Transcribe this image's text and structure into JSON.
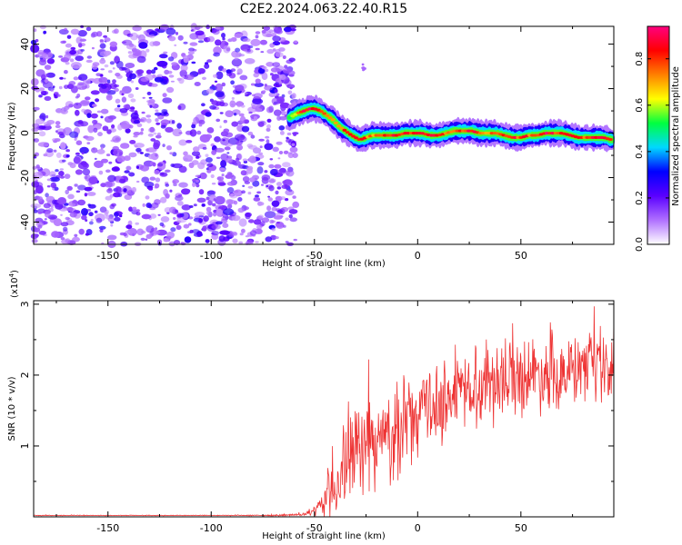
{
  "title": "C2E2.2024.063.22.40.R15",
  "chart_data": [
    {
      "type": "heatmap",
      "xlabel": "Height of straight line (km)",
      "ylabel": "Frequency (Hz)",
      "xlim": [
        -186,
        95
      ],
      "ylim": [
        -50,
        48
      ],
      "x_ticks": [
        -150,
        -100,
        -50,
        0,
        50
      ],
      "y_ticks": [
        -40,
        -20,
        0,
        20,
        40
      ],
      "colorbar": {
        "label": "Normalized spectral amplitude",
        "range": [
          0,
          0.94
        ],
        "ticks": [
          0.0,
          0.2,
          0.4,
          0.6,
          0.8
        ],
        "colormap": [
          "#ffffff",
          "#b070ff",
          "#5a00ff",
          "#0000ff",
          "#00d8ff",
          "#00ff40",
          "#ffff00",
          "#ff8000",
          "#ff0000",
          "#ff0080"
        ]
      },
      "noise_region": {
        "x": [
          -186,
          -59
        ],
        "y": [
          -50,
          48
        ]
      },
      "signal_ridge": {
        "x": [
          -62,
          -58,
          -55,
          -52,
          -50,
          -47,
          -44,
          -41,
          -38,
          -35,
          -32,
          -28,
          -25,
          -22,
          -18,
          -14,
          -10,
          -6,
          -2,
          2,
          6,
          10,
          14,
          18,
          22,
          26,
          30,
          34,
          38,
          42,
          46,
          50,
          54,
          58,
          62,
          66,
          70,
          74,
          78,
          82,
          86,
          90,
          94
        ],
        "frequency": [
          7,
          9,
          10,
          11,
          11,
          10,
          8,
          6,
          3,
          1,
          -1,
          -3,
          -2,
          -1,
          -1,
          -1,
          -1,
          0,
          0,
          0,
          -1,
          -1,
          0,
          1,
          1,
          1,
          0,
          0,
          0,
          -1,
          -2,
          -2,
          -1,
          -1,
          0,
          0,
          0,
          -1,
          -2,
          -2,
          -2,
          -2,
          -3
        ],
        "peak_amplitude": [
          0.55,
          0.7,
          0.85,
          0.9,
          0.9,
          0.85,
          0.8,
          0.75,
          0.75,
          0.8,
          0.85,
          0.85,
          0.8,
          0.75,
          0.8,
          0.85,
          0.9,
          0.85,
          0.8,
          0.85,
          0.9,
          0.85,
          0.8,
          0.75,
          0.8,
          0.85,
          0.8,
          0.75,
          0.8,
          0.85,
          0.85,
          0.8,
          0.8,
          0.85,
          0.9,
          0.85,
          0.8,
          0.85,
          0.85,
          0.8,
          0.85,
          0.85,
          0.8
        ]
      },
      "artifact": {
        "x": [
          -27,
          -25
        ],
        "y": [
          26,
          31
        ]
      }
    },
    {
      "type": "line",
      "xlabel": "Height of straight line (km)",
      "ylabel": "SNR (10 * v/v)",
      "y_multiplier": "(x10",
      "y_multiplier_exp": "4",
      "y_multiplier_close": ")",
      "xlim": [
        -186,
        95
      ],
      "ylim": [
        0,
        3.05
      ],
      "x_ticks": [
        -150,
        -100,
        -50,
        0,
        50
      ],
      "y_ticks": [
        1,
        2,
        3
      ],
      "line_color": "#ee3333",
      "series": [
        {
          "x": [
            -186,
            -160,
            -130,
            -100,
            -70,
            -55,
            -50,
            -46,
            -42,
            -38,
            -34,
            -30,
            -26,
            -22,
            -18,
            -14,
            -10,
            -6,
            -2,
            2,
            6,
            10,
            14,
            18,
            22,
            26,
            30,
            34,
            38,
            42,
            46,
            50,
            54,
            58,
            62,
            66,
            70,
            74,
            78,
            82,
            86,
            90,
            95
          ],
          "y": [
            0.02,
            0.02,
            0.02,
            0.02,
            0.02,
            0.03,
            0.08,
            0.18,
            0.38,
            0.55,
            0.78,
            0.9,
            0.98,
            1.02,
            1.08,
            1.12,
            1.2,
            1.28,
            1.38,
            1.45,
            1.55,
            1.62,
            1.65,
            1.72,
            1.78,
            1.82,
            1.88,
            1.92,
            1.95,
            1.95,
            1.98,
            2.0,
            2.02,
            2.02,
            2.03,
            2.03,
            2.04,
            2.04,
            2.05,
            2.05,
            2.05,
            2.05,
            2.05
          ],
          "spread": [
            0.005,
            0.005,
            0.005,
            0.005,
            0.01,
            0.02,
            0.06,
            0.2,
            0.45,
            0.6,
            0.65,
            0.65,
            0.65,
            0.65,
            0.65,
            0.65,
            0.65,
            0.62,
            0.6,
            0.6,
            0.58,
            0.58,
            0.58,
            0.58,
            0.58,
            0.6,
            0.6,
            0.6,
            0.6,
            0.55,
            0.55,
            0.55,
            0.55,
            0.55,
            0.52,
            0.52,
            0.5,
            0.5,
            0.5,
            0.5,
            0.5,
            0.5,
            0.5
          ]
        }
      ]
    }
  ]
}
